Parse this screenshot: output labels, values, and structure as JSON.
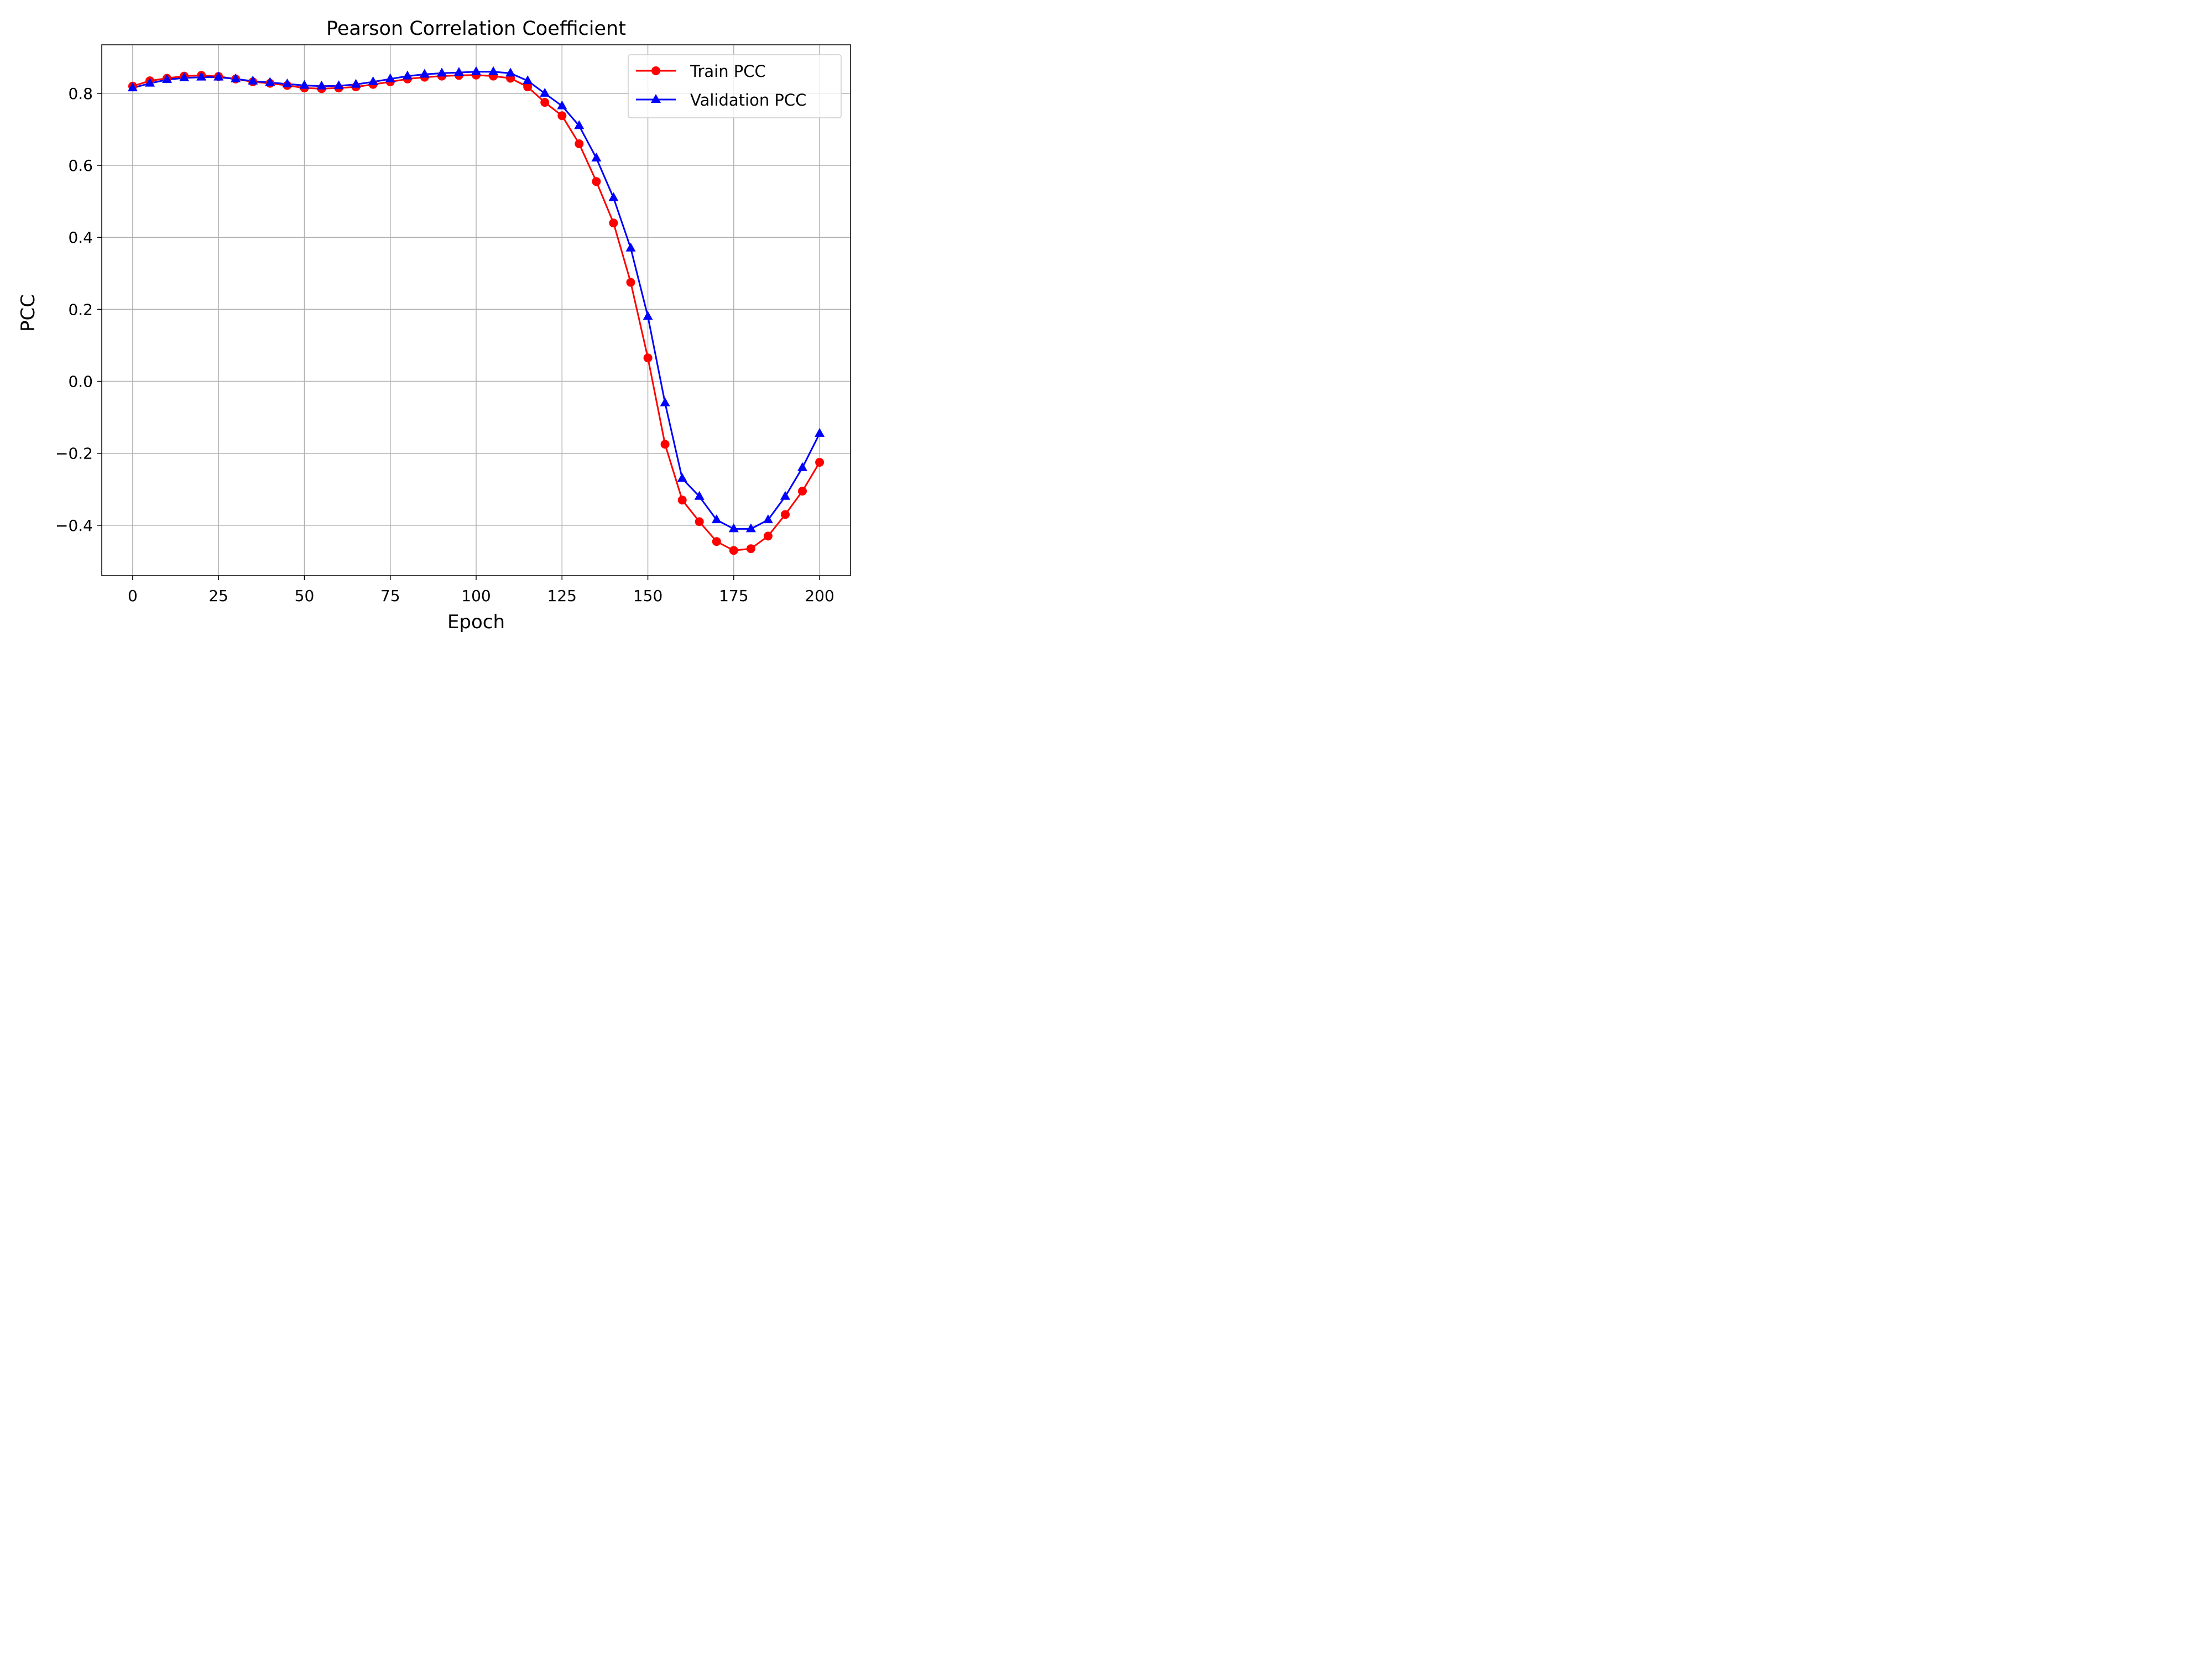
{
  "chart_data": {
    "type": "line",
    "title": "Pearson Correlation Coefficient",
    "xlabel": "Epoch",
    "ylabel": "PCC",
    "xlim": [
      -9,
      209
    ],
    "ylim": [
      -0.54,
      0.935
    ],
    "x_ticks": [
      0,
      25,
      50,
      75,
      100,
      125,
      150,
      175,
      200
    ],
    "x_tick_labels": [
      "0",
      "25",
      "50",
      "75",
      "100",
      "125",
      "150",
      "175",
      "200"
    ],
    "y_ticks": [
      -0.4,
      -0.2,
      0.0,
      0.2,
      0.4,
      0.6,
      0.8
    ],
    "y_tick_labels": [
      "−0.4",
      "−0.2",
      "0.0",
      "0.2",
      "0.4",
      "0.6",
      "0.8"
    ],
    "grid": true,
    "legend_position": "top-right",
    "x": [
      0,
      5,
      10,
      15,
      20,
      25,
      30,
      35,
      40,
      45,
      50,
      55,
      60,
      65,
      70,
      75,
      80,
      85,
      90,
      95,
      100,
      105,
      110,
      115,
      120,
      125,
      130,
      135,
      140,
      145,
      150,
      155,
      160,
      165,
      170,
      175,
      180,
      185,
      190,
      195,
      200
    ],
    "series": [
      {
        "name": "Train PCC",
        "color": "#ff0000",
        "marker": "circle",
        "values": [
          0.82,
          0.835,
          0.842,
          0.848,
          0.85,
          0.847,
          0.84,
          0.832,
          0.828,
          0.822,
          0.815,
          0.813,
          0.815,
          0.818,
          0.825,
          0.832,
          0.84,
          0.845,
          0.848,
          0.85,
          0.851,
          0.848,
          0.842,
          0.818,
          0.775,
          0.738,
          0.66,
          0.555,
          0.44,
          0.275,
          0.065,
          -0.175,
          -0.33,
          -0.39,
          -0.445,
          -0.47,
          -0.465,
          -0.43,
          -0.37,
          -0.305,
          -0.225
        ]
      },
      {
        "name": "Validation PCC",
        "color": "#0000ff",
        "marker": "triangle",
        "values": [
          0.815,
          0.828,
          0.838,
          0.843,
          0.845,
          0.845,
          0.84,
          0.834,
          0.83,
          0.826,
          0.822,
          0.82,
          0.821,
          0.825,
          0.832,
          0.84,
          0.848,
          0.853,
          0.856,
          0.858,
          0.86,
          0.86,
          0.856,
          0.835,
          0.8,
          0.765,
          0.71,
          0.62,
          0.51,
          0.37,
          0.18,
          -0.06,
          -0.27,
          -0.32,
          -0.385,
          -0.41,
          -0.41,
          -0.385,
          -0.32,
          -0.24,
          -0.145
        ]
      }
    ]
  }
}
